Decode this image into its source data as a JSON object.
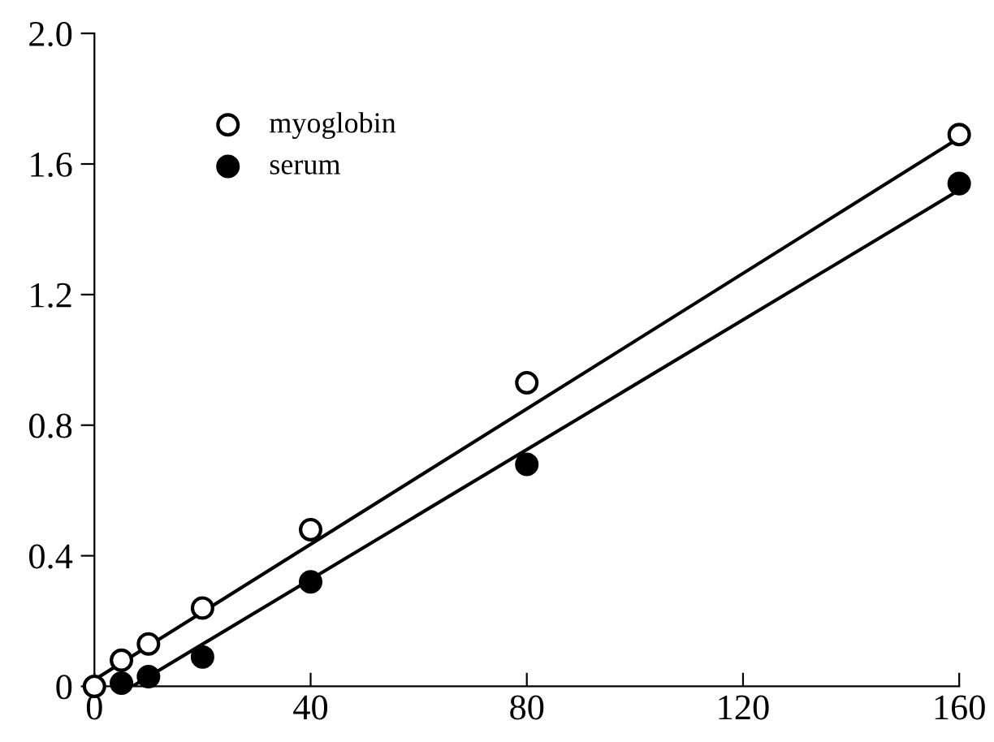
{
  "chart_data": {
    "type": "scatter",
    "xlim": [
      0,
      160
    ],
    "ylim": [
      0,
      2.0
    ],
    "xticks": [
      0,
      40,
      80,
      120,
      160
    ],
    "yticks": [
      0,
      0.4,
      0.8,
      1.2,
      1.6,
      {
        "value": 2,
        "label": "2.0"
      }
    ],
    "grid": false,
    "legend": "top left",
    "series": [
      {
        "name": "myoglobin",
        "marker": "circle",
        "color": "#ffffff",
        "x": [
          0,
          5,
          10,
          20,
          40,
          80,
          160
        ],
        "values": [
          0.0,
          0.08,
          0.13,
          0.24,
          0.48,
          0.93,
          1.69
        ]
      },
      {
        "name": "serum",
        "marker": "circle",
        "color": "#000000",
        "x": [
          5,
          10,
          20,
          40,
          80,
          160
        ],
        "values": [
          0.01,
          0.03,
          0.09,
          0.32,
          0.68,
          1.54
        ]
      },
      {
        "type": "line",
        "marker": "none",
        "color": "#000000",
        "x": [
          0,
          160
        ],
        "values": [
          0.02,
          1.68
        ]
      },
      {
        "type": "line",
        "marker": "none",
        "color": "#000000",
        "x": [
          7,
          160
        ],
        "values": [
          0.0,
          1.52
        ]
      }
    ]
  }
}
